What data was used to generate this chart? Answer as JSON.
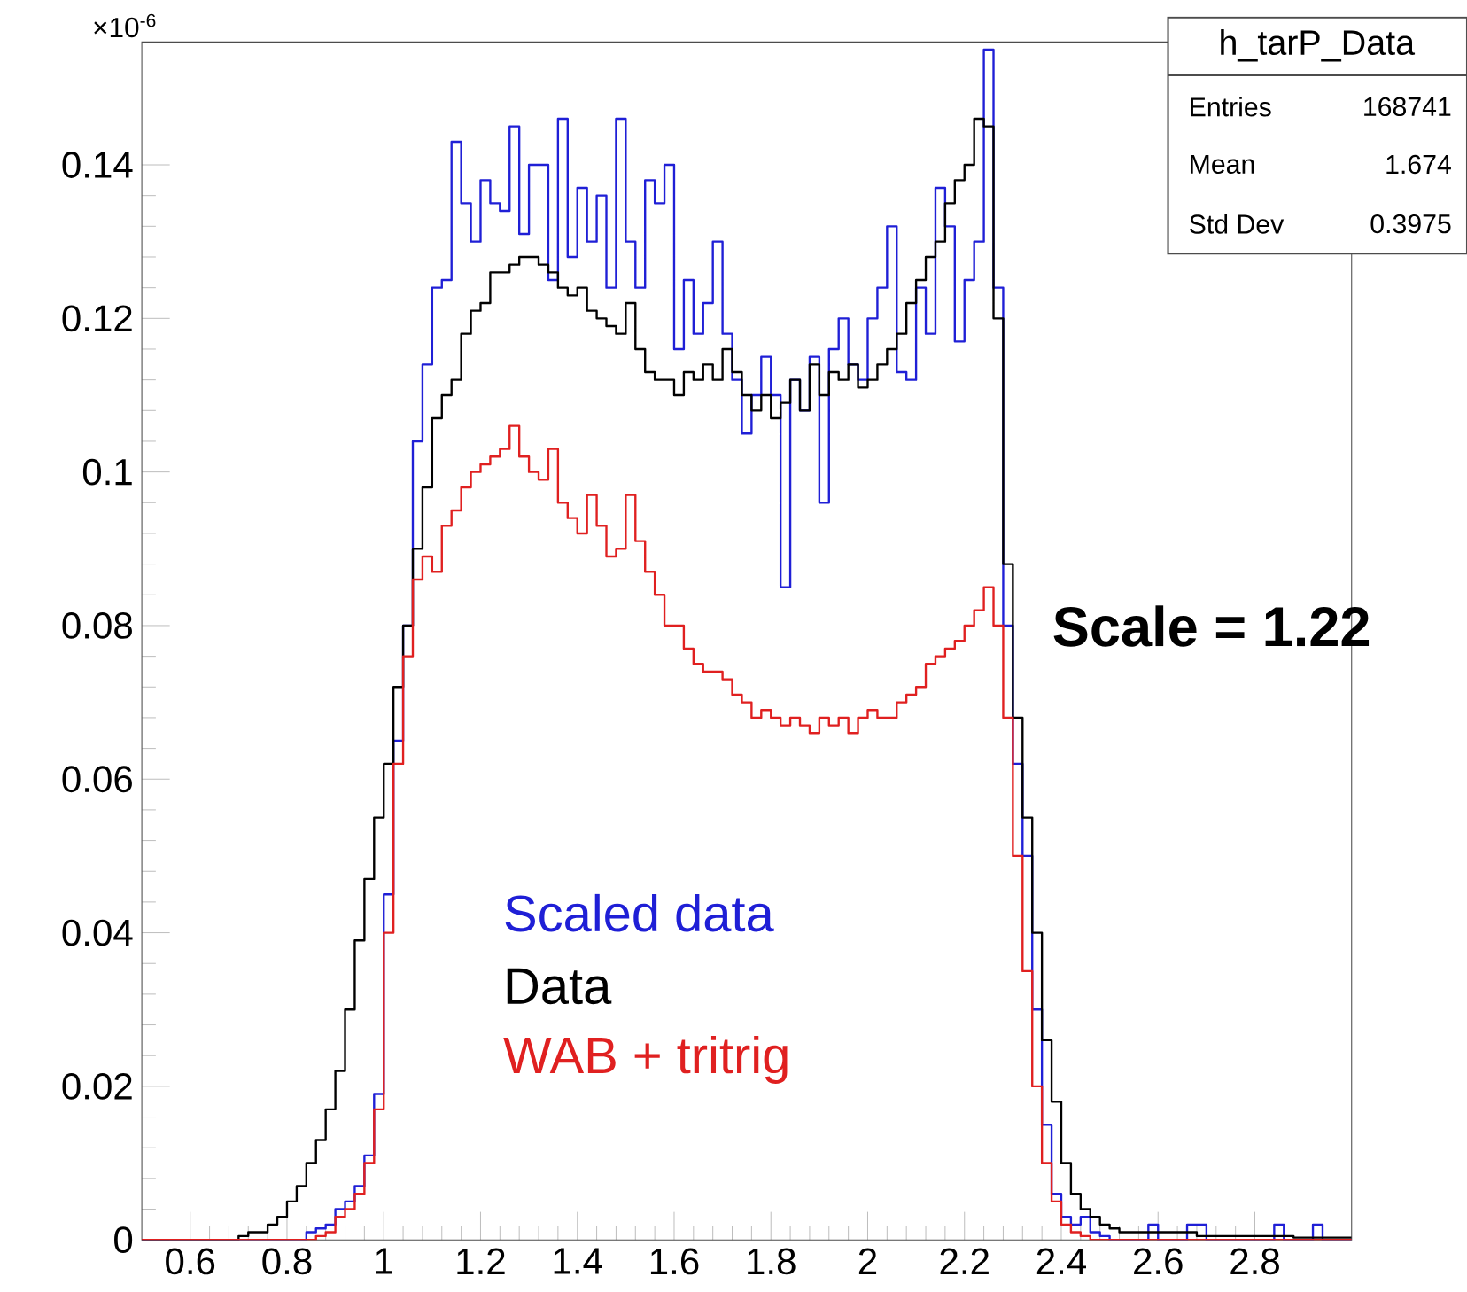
{
  "chart_data": {
    "type": "histogram",
    "bins": [
      0.5,
      0.52,
      0.54,
      0.56,
      0.58,
      0.6,
      0.62,
      0.64,
      0.66,
      0.68,
      0.7,
      0.72,
      0.74,
      0.76,
      0.78,
      0.8,
      0.82,
      0.84,
      0.86,
      0.88,
      0.9,
      0.92,
      0.94,
      0.96,
      0.98,
      1.0,
      1.02,
      1.04,
      1.06,
      1.08,
      1.1,
      1.12,
      1.14,
      1.16,
      1.18,
      1.2,
      1.22,
      1.24,
      1.26,
      1.28,
      1.3,
      1.32,
      1.34,
      1.36,
      1.38,
      1.4,
      1.42,
      1.44,
      1.46,
      1.48,
      1.5,
      1.52,
      1.54,
      1.56,
      1.58,
      1.6,
      1.62,
      1.64,
      1.66,
      1.68,
      1.7,
      1.72,
      1.74,
      1.76,
      1.78,
      1.8,
      1.82,
      1.84,
      1.86,
      1.88,
      1.9,
      1.92,
      1.94,
      1.96,
      1.98,
      2.0,
      2.02,
      2.04,
      2.06,
      2.08,
      2.1,
      2.12,
      2.14,
      2.16,
      2.18,
      2.2,
      2.22,
      2.24,
      2.26,
      2.28,
      2.3,
      2.32,
      2.34,
      2.36,
      2.38,
      2.4,
      2.42,
      2.44,
      2.46,
      2.48,
      2.5,
      2.52,
      2.54,
      2.56,
      2.58,
      2.6,
      2.62,
      2.64,
      2.66,
      2.68,
      2.7,
      2.72,
      2.74,
      2.76,
      2.78,
      2.8,
      2.82,
      2.84,
      2.86,
      2.88,
      2.9,
      2.92,
      2.94,
      2.96,
      2.98,
      3.0
    ],
    "series": [
      {
        "name": "Scaled data",
        "color": "#1f1fd6",
        "values": [
          0,
          0,
          0,
          0,
          0,
          0,
          0,
          0,
          0,
          0,
          0,
          0,
          0,
          0,
          0,
          0,
          0,
          0.001,
          0.0015,
          0.002,
          0.004,
          0.005,
          0.007,
          0.011,
          0.019,
          0.045,
          0.065,
          0.08,
          0.104,
          0.114,
          0.124,
          0.125,
          0.143,
          0.135,
          0.13,
          0.138,
          0.135,
          0.134,
          0.145,
          0.131,
          0.14,
          0.14,
          0.125,
          0.146,
          0.128,
          0.137,
          0.13,
          0.136,
          0.124,
          0.146,
          0.13,
          0.124,
          0.138,
          0.135,
          0.14,
          0.116,
          0.125,
          0.118,
          0.122,
          0.13,
          0.118,
          0.112,
          0.105,
          0.11,
          0.115,
          0.11,
          0.085,
          0.112,
          0.108,
          0.115,
          0.096,
          0.116,
          0.12,
          0.114,
          0.112,
          0.12,
          0.124,
          0.132,
          0.113,
          0.112,
          0.124,
          0.118,
          0.137,
          0.132,
          0.117,
          0.125,
          0.13,
          0.155,
          0.124,
          0.08,
          0.062,
          0.05,
          0.03,
          0.015,
          0.006,
          0.003,
          0.002,
          0.003,
          0.001,
          0.0005,
          0,
          0,
          0,
          0,
          0.002,
          0,
          0,
          0,
          0.002,
          0.002,
          0,
          0,
          0,
          0,
          0,
          0,
          0,
          0.002,
          0,
          0,
          0,
          0.002,
          0,
          0,
          0
        ]
      },
      {
        "name": "Data",
        "color": "#000000",
        "values": [
          0,
          0,
          0,
          0,
          0,
          0,
          0,
          0,
          0,
          0,
          0.0005,
          0.001,
          0.001,
          0.002,
          0.003,
          0.005,
          0.007,
          0.01,
          0.013,
          0.017,
          0.022,
          0.03,
          0.039,
          0.047,
          0.055,
          0.062,
          0.072,
          0.08,
          0.09,
          0.098,
          0.107,
          0.11,
          0.112,
          0.118,
          0.121,
          0.122,
          0.126,
          0.126,
          0.127,
          0.128,
          0.128,
          0.127,
          0.126,
          0.124,
          0.123,
          0.124,
          0.121,
          0.12,
          0.119,
          0.118,
          0.122,
          0.116,
          0.113,
          0.112,
          0.112,
          0.11,
          0.113,
          0.112,
          0.114,
          0.112,
          0.116,
          0.113,
          0.11,
          0.108,
          0.11,
          0.107,
          0.109,
          0.112,
          0.108,
          0.114,
          0.11,
          0.113,
          0.112,
          0.114,
          0.111,
          0.112,
          0.114,
          0.116,
          0.118,
          0.122,
          0.125,
          0.128,
          0.13,
          0.135,
          0.138,
          0.14,
          0.146,
          0.145,
          0.12,
          0.088,
          0.068,
          0.055,
          0.04,
          0.026,
          0.018,
          0.01,
          0.006,
          0.004,
          0.003,
          0.002,
          0.0015,
          0.001,
          0.001,
          0.001,
          0.001,
          0.001,
          0.001,
          0.001,
          0.001,
          0.0005,
          0.0005,
          0.0005,
          0.0005,
          0.0005,
          0.0005,
          0.0005,
          0.0005,
          0.0005,
          0.0005,
          0.0003,
          0.0003,
          0.0003,
          0.0003,
          0.0003,
          0.0003
        ]
      },
      {
        "name": "WAB + tritrig",
        "color": "#e02020",
        "values": [
          0,
          0,
          0,
          0,
          0,
          0,
          0,
          0,
          0,
          0,
          0,
          0,
          0,
          0,
          0,
          0,
          0,
          0,
          0.0005,
          0.001,
          0.003,
          0.004,
          0.006,
          0.01,
          0.017,
          0.04,
          0.062,
          0.076,
          0.086,
          0.089,
          0.087,
          0.093,
          0.095,
          0.098,
          0.1,
          0.101,
          0.102,
          0.103,
          0.106,
          0.102,
          0.1,
          0.099,
          0.103,
          0.096,
          0.094,
          0.092,
          0.097,
          0.093,
          0.089,
          0.09,
          0.097,
          0.091,
          0.087,
          0.084,
          0.08,
          0.08,
          0.077,
          0.075,
          0.074,
          0.074,
          0.073,
          0.071,
          0.07,
          0.068,
          0.069,
          0.068,
          0.067,
          0.068,
          0.067,
          0.066,
          0.068,
          0.067,
          0.068,
          0.066,
          0.068,
          0.069,
          0.068,
          0.068,
          0.07,
          0.071,
          0.072,
          0.075,
          0.076,
          0.077,
          0.078,
          0.08,
          0.082,
          0.085,
          0.08,
          0.068,
          0.05,
          0.035,
          0.02,
          0.01,
          0.005,
          0.002,
          0.001,
          0.0005,
          0,
          0,
          0,
          0,
          0,
          0,
          0,
          0,
          0,
          0,
          0,
          0,
          0,
          0,
          0,
          0,
          0,
          0,
          0,
          0,
          0,
          0,
          0,
          0,
          0,
          0,
          0
        ]
      }
    ],
    "xlim": [
      0.5,
      3.0
    ],
    "ylim": [
      0,
      0.156
    ],
    "xticks": [
      0.6,
      0.8,
      1,
      1.2,
      1.4,
      1.6,
      1.8,
      2,
      2.2,
      2.4,
      2.6,
      2.8
    ],
    "yticks": [
      0,
      0.02,
      0.04,
      0.06,
      0.08,
      0.1,
      0.12,
      0.14
    ],
    "annotations": [
      "×10$^{-6}$",
      "h_tarP_Data",
      "Entries",
      "168741",
      "Mean",
      "1.674",
      "Std Dev",
      "0.3975",
      "Scale = 1.22"
    ]
  }
}
